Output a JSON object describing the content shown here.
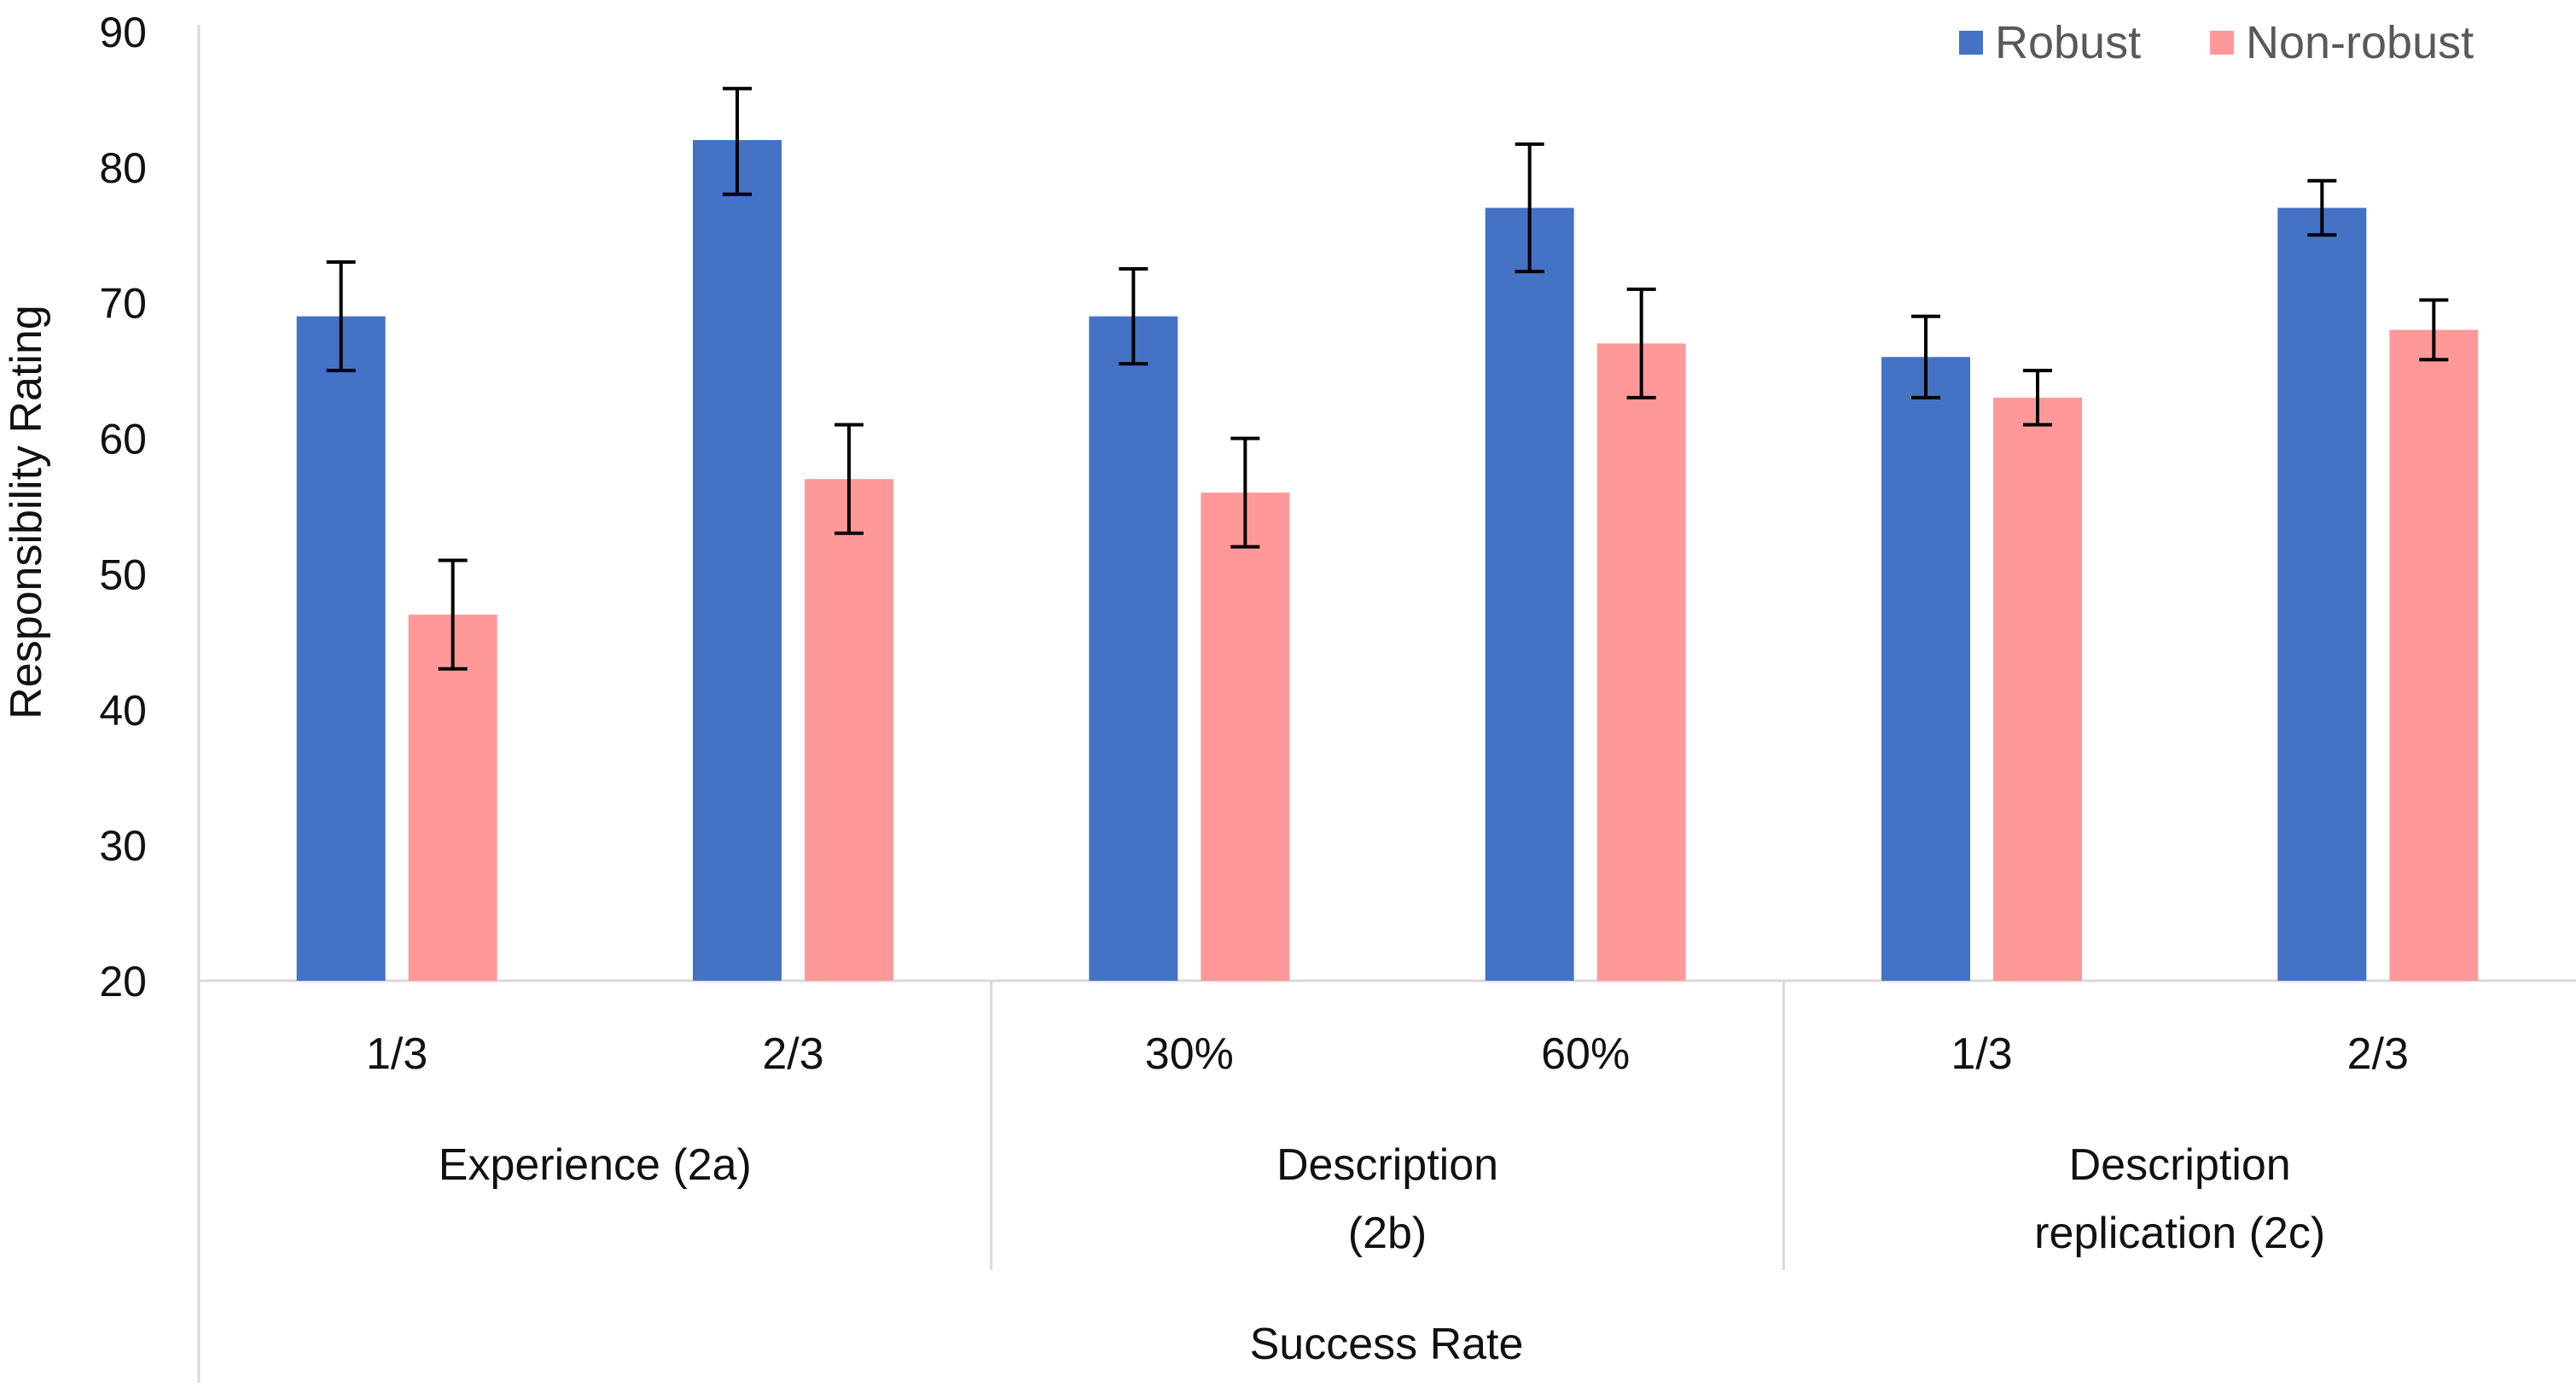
{
  "chart_data": {
    "type": "bar",
    "title": "",
    "ylabel": "Responsibility Rating",
    "xlabel": "Success Rate",
    "ylim": [
      20,
      90
    ],
    "yticks": [
      "20",
      "30",
      "40",
      "50",
      "60",
      "70",
      "80",
      "90"
    ],
    "grid": false,
    "legend_position": "top-right",
    "groups": [
      {
        "label_lines": [
          "Experience (2a)"
        ],
        "categories": [
          "1/3",
          "2/3"
        ]
      },
      {
        "label_lines": [
          "Description",
          "(2b)"
        ],
        "categories": [
          "30%",
          "60%"
        ]
      },
      {
        "label_lines": [
          "Description",
          "replication (2c)"
        ],
        "categories": [
          "1/3",
          "2/3"
        ]
      }
    ],
    "categories": [
      "1/3",
      "2/3",
      "30%",
      "60%",
      "1/3",
      "2/3"
    ],
    "series": [
      {
        "name": "Robust",
        "color": "#4472C4",
        "values": [
          69,
          82,
          69,
          77,
          66,
          77
        ],
        "error_low": [
          65,
          78,
          65.5,
          72.3,
          63,
          75
        ],
        "error_high": [
          73,
          85.8,
          72.5,
          81.7,
          69,
          79
        ]
      },
      {
        "name": "Non-robust",
        "color": "#FF9999",
        "values": [
          47,
          57,
          56,
          67,
          63,
          68
        ],
        "error_low": [
          43,
          53,
          52,
          63,
          61,
          65.8
        ],
        "error_high": [
          51,
          61,
          60,
          71,
          65,
          70.2
        ]
      }
    ]
  }
}
